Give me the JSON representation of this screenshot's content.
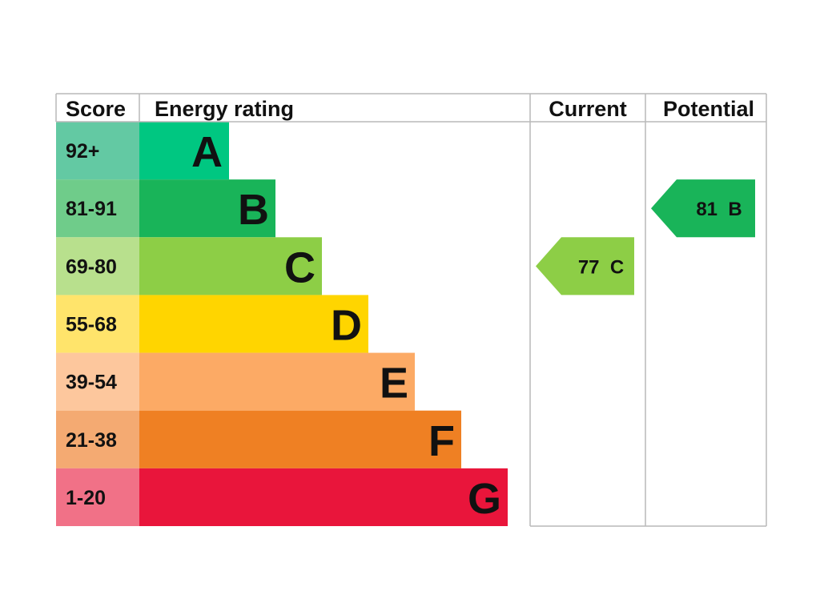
{
  "chart_data": {
    "type": "table",
    "headers": {
      "score": "Score",
      "rating": "Energy rating",
      "current": "Current",
      "potential": "Potential"
    },
    "bands": [
      {
        "score": "92+",
        "letter": "A",
        "color": "#00c781",
        "score_bg": "#63c9a3"
      },
      {
        "score": "81-91",
        "letter": "B",
        "color": "#19b459",
        "score_bg": "#6fcc8a"
      },
      {
        "score": "69-80",
        "letter": "C",
        "color": "#8dce46",
        "score_bg": "#b8e08d"
      },
      {
        "score": "55-68",
        "letter": "D",
        "color": "#ffd500",
        "score_bg": "#ffe46b"
      },
      {
        "score": "39-54",
        "letter": "E",
        "color": "#fcaa65",
        "score_bg": "#fdc79d"
      },
      {
        "score": "21-38",
        "letter": "F",
        "color": "#ef8023",
        "score_bg": "#f4aa72"
      },
      {
        "score": "1-20",
        "letter": "G",
        "color": "#e9153b",
        "score_bg": "#f17187"
      }
    ],
    "current": {
      "value": 77,
      "letter": "C",
      "label": "77  C",
      "color": "#8dce46"
    },
    "potential": {
      "value": 81,
      "letter": "B",
      "label": "81  B",
      "color": "#19b459"
    }
  }
}
